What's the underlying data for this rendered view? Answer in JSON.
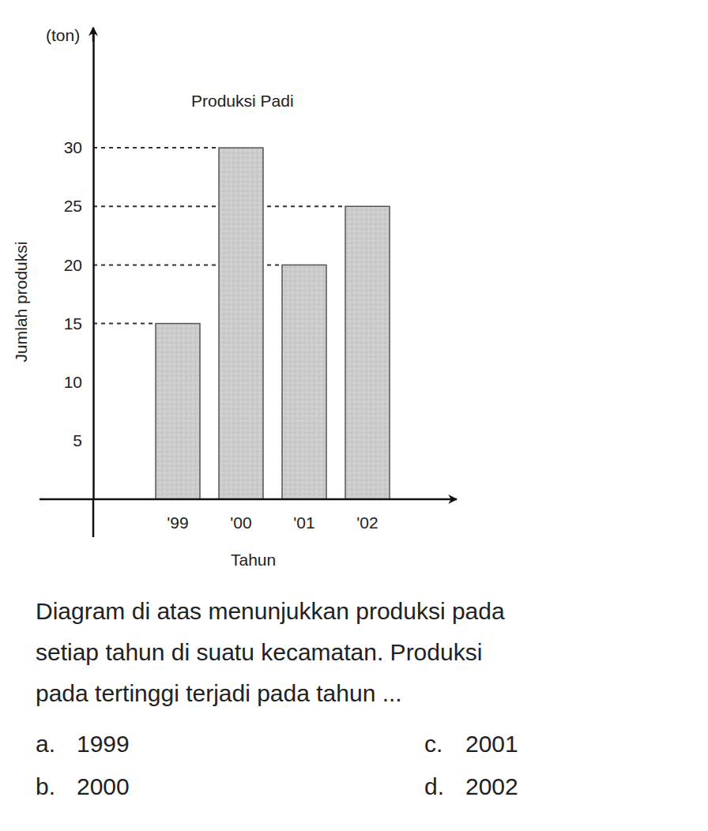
{
  "chart_data": {
    "type": "bar",
    "title": "Produksi Padi",
    "y_unit": "(ton)",
    "y_label": "Jumlah produksi",
    "x_label": "Tahun",
    "categories": [
      "'99",
      "'00",
      "'01",
      "'02"
    ],
    "values": [
      15,
      30,
      20,
      25
    ],
    "color": "#cccccc",
    "ylim": [
      0,
      40
    ],
    "yticks": [
      5,
      10,
      15,
      20,
      25,
      30
    ],
    "grid": false
  },
  "question": [
    "Diagram di atas menunjukkan produksi pada",
    "setiap tahun di suatu kecamatan. Produksi",
    "pada tertinggi terjadi pada tahun ..."
  ],
  "options": [
    {
      "letter": "a.",
      "text": "1999"
    },
    {
      "letter": "b.",
      "text": "2000"
    },
    {
      "letter": "c.",
      "text": "2001"
    },
    {
      "letter": "d.",
      "text": "2002"
    }
  ]
}
